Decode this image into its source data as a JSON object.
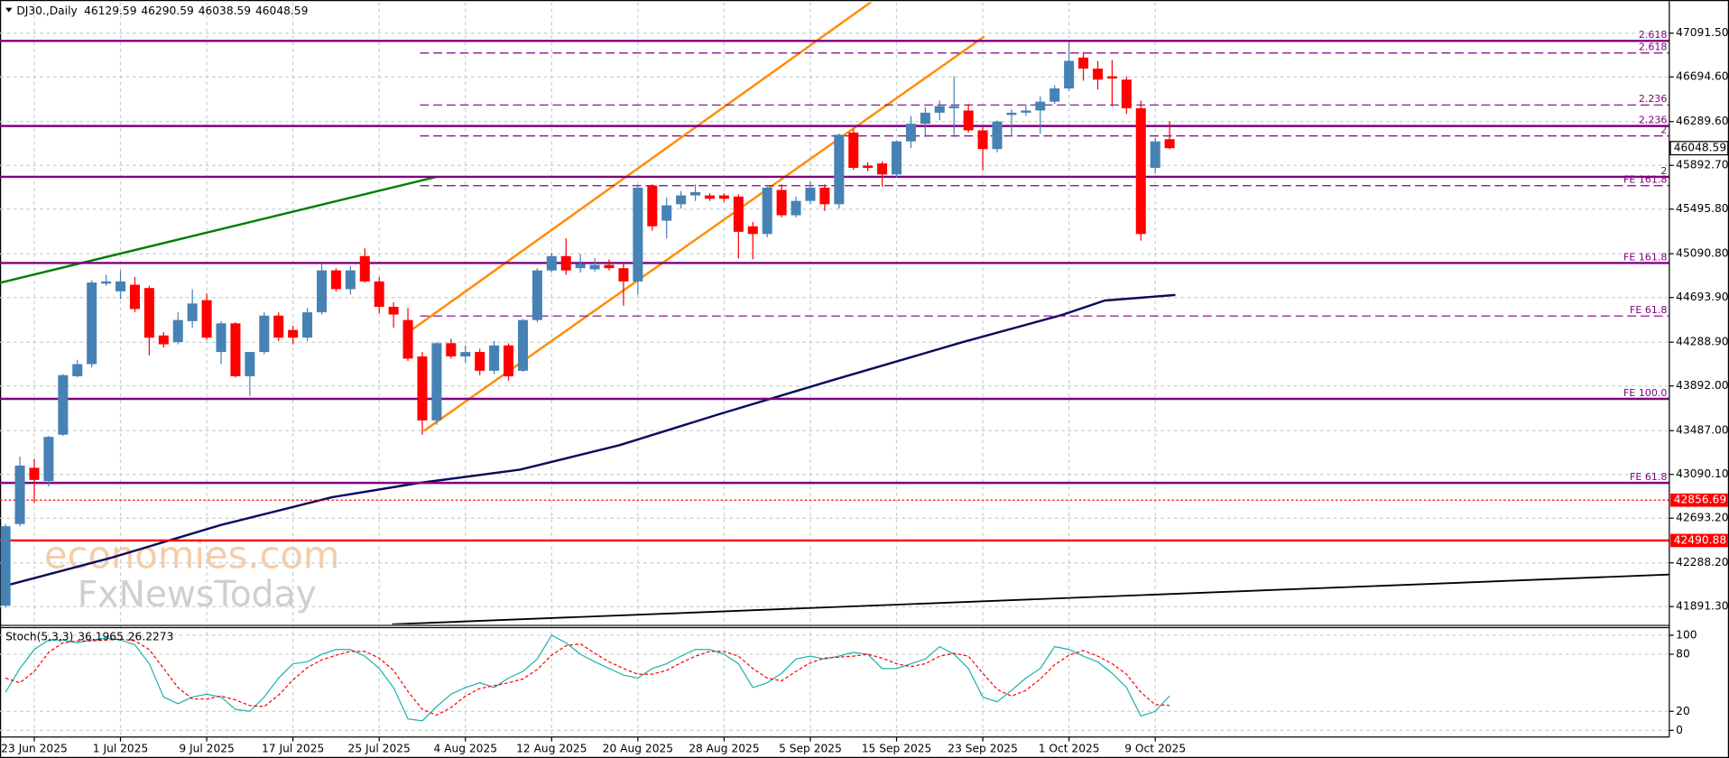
{
  "chart_data": {
    "type": "candlestick",
    "title": "DJ30.,Daily",
    "categories": [
      null,
      null,
      "23 Jun 2025",
      null,
      null,
      null,
      null,
      null,
      "1 Jul 2025",
      null,
      null,
      null,
      null,
      null,
      "9 Jul 2025",
      null,
      null,
      null,
      null,
      null,
      "17 Jul 2025",
      null,
      null,
      null,
      null,
      null,
      "25 Jul 2025",
      null,
      null,
      null,
      null,
      null,
      "4 Aug 2025",
      null,
      null,
      null,
      null,
      null,
      "12 Aug 2025",
      null,
      null,
      null,
      null,
      null,
      "20 Aug 2025",
      null,
      null,
      null,
      null,
      null,
      "28 Aug 2025",
      null,
      null,
      null,
      null,
      null,
      "5 Sep 2025",
      null,
      null,
      null,
      null,
      null,
      "15 Sep 2025",
      null,
      null,
      null,
      null,
      null,
      "23 Sep 2025",
      null,
      null,
      null,
      null,
      null,
      "1 Oct 2025",
      null,
      null,
      null,
      null,
      null,
      "9 Oct 2025",
      null
    ],
    "open": [
      41900,
      42640,
      43150,
      43030,
      43450,
      43980,
      44090,
      44820,
      44750,
      44810,
      44780,
      44350,
      44290,
      44480,
      44670,
      44200,
      44460,
      43980,
      44200,
      44530,
      44400,
      44330,
      44560,
      44940,
      44770,
      45070,
      44840,
      44610,
      44490,
      44160,
      43580,
      44280,
      44160,
      44200,
      44030,
      44260,
      44030,
      44490,
      44940,
      45070,
      44960,
      44950,
      44990,
      44960,
      44840,
      45710,
      45390,
      45540,
      45620,
      45620,
      45620,
      45610,
      45340,
      45270,
      45670,
      45440,
      45570,
      45690,
      45540,
      46190,
      45890,
      45910,
      45810,
      46110,
      46270,
      46370,
      46410,
      46390,
      46210,
      46040,
      46350,
      46370,
      46390,
      46470,
      46590,
      46870,
      46770,
      46700,
      46670,
      46410,
      45870,
      46129.59
    ],
    "high": [
      42640,
      43250,
      43230,
      43440,
      44000,
      44130,
      44850,
      44900,
      44940,
      44880,
      44800,
      44380,
      44560,
      44770,
      44730,
      44480,
      44470,
      44200,
      44560,
      44560,
      44440,
      44600,
      45000,
      44960,
      44980,
      45140,
      44880,
      44650,
      44600,
      44200,
      44290,
      44320,
      44260,
      44230,
      44300,
      44280,
      44500,
      44960,
      45100,
      45230,
      45090,
      45050,
      45040,
      45000,
      45720,
      45720,
      45600,
      45660,
      45720,
      45640,
      45640,
      45630,
      45380,
      45700,
      45720,
      45610,
      45750,
      45720,
      46180,
      46220,
      45920,
      45930,
      46120,
      46340,
      46420,
      46480,
      46700,
      46450,
      46240,
      46300,
      46400,
      46440,
      46520,
      46620,
      47010,
      46920,
      46840,
      46850,
      46700,
      46480,
      46140,
      46290.59
    ],
    "low": [
      41880,
      42620,
      42830,
      42980,
      43440,
      43970,
      44060,
      44800,
      44680,
      44560,
      44170,
      44240,
      44270,
      44420,
      44310,
      44090,
      43970,
      43800,
      44180,
      44300,
      44270,
      44300,
      44540,
      44750,
      44720,
      44830,
      44550,
      44420,
      44120,
      43450,
      43540,
      44140,
      44100,
      43990,
      44000,
      43940,
      44020,
      44470,
      44920,
      44900,
      44920,
      44930,
      44940,
      44620,
      44720,
      45300,
      45230,
      45500,
      45570,
      45570,
      45560,
      45050,
      45040,
      45240,
      45420,
      45420,
      45540,
      45480,
      45500,
      45850,
      45840,
      45700,
      45780,
      46050,
      46150,
      46300,
      46150,
      46190,
      45850,
      46010,
      46160,
      46340,
      46180,
      46450,
      46570,
      46660,
      46580,
      46430,
      46360,
      45210,
      45820,
      46038.59
    ],
    "close": [
      42620,
      43170,
      43040,
      43430,
      43990,
      44090,
      44830,
      44840,
      44840,
      44590,
      44330,
      44270,
      44490,
      44640,
      44330,
      44460,
      43980,
      44200,
      44530,
      44330,
      44330,
      44560,
      44940,
      44770,
      44940,
      44840,
      44610,
      44540,
      44140,
      43580,
      44280,
      44160,
      44200,
      44030,
      44260,
      43980,
      44490,
      44940,
      45070,
      44940,
      45000,
      44990,
      44960,
      44840,
      45690,
      45340,
      45530,
      45620,
      45650,
      45590,
      45590,
      45290,
      45270,
      45690,
      45440,
      45570,
      45690,
      45540,
      46170,
      45870,
      45870,
      45810,
      46110,
      46270,
      46370,
      46430,
      46430,
      46210,
      46040,
      46290,
      46370,
      46390,
      46470,
      46590,
      46840,
      46770,
      46670,
      46680,
      46410,
      45270,
      46110,
      46048.59
    ],
    "up_color": "#4682b4",
    "down_color": "#ff0000",
    "ylim": [
      41730.8,
      47372
    ],
    "yticks": [
      {
        "value": 47091.5,
        "label": "47091.50"
      },
      {
        "value": 46694.6,
        "label": "46694.60"
      },
      {
        "value": 46289.6,
        "label": "46289.60"
      },
      {
        "value": 45892.7,
        "label": "45892.70"
      },
      {
        "value": 45495.8,
        "label": "45495.80"
      },
      {
        "value": 45090.8,
        "label": "45090.80"
      },
      {
        "value": 44693.9,
        "label": "44693.90"
      },
      {
        "value": 44288.9,
        "label": "44288.90"
      },
      {
        "value": 43892,
        "label": "43892.00"
      },
      {
        "value": 43487,
        "label": "43487.00"
      },
      {
        "value": 43090.1,
        "label": "43090.10"
      },
      {
        "value": 42693.2,
        "label": "42693.20"
      },
      {
        "value": 42288.2,
        "label": "42288.20"
      },
      {
        "value": 41891.3,
        "label": "41891.30"
      }
    ],
    "grid": true,
    "levels": [
      {
        "value": 47021.4,
        "label": "2.618",
        "color": "#800080",
        "style": "solid"
      },
      {
        "value": 46911.1,
        "label": "2.618",
        "color": "#800080",
        "style": "dashed"
      },
      {
        "value": 46440.2,
        "label": "2.236",
        "color": "#800080",
        "style": "dashed"
      },
      {
        "value": 46249.8,
        "label": "2.236",
        "color": "#800080",
        "style": "solid"
      },
      {
        "value": 46159.6,
        "label": "2",
        "color": "#800080",
        "style": "dashed"
      },
      {
        "value": 45788.9,
        "label": "2",
        "color": "#800080",
        "style": "solid"
      },
      {
        "value": 45708.7,
        "label": "FE 161.8",
        "color": "#800080",
        "style": "dashed"
      },
      {
        "value": 45007.3,
        "label": "FE 161.8",
        "color": "#800080",
        "style": "solid"
      },
      {
        "value": 44526.4,
        "label": "FE 61.8",
        "color": "#800080",
        "style": "dashed"
      },
      {
        "value": 43774.9,
        "label": "FE 100.0",
        "color": "#800080",
        "style": "solid"
      },
      {
        "value": 43013.4,
        "label": "FE 61.8",
        "color": "#800080",
        "style": "solid"
      },
      {
        "value": 42856.69,
        "color": "#ff0000",
        "style": "dotted",
        "price_tag": true
      },
      {
        "value": 42490.88,
        "color": "#ff0000",
        "style": "solid",
        "price_tag": true
      }
    ],
    "trendlines": [
      {
        "color": "#ff8c00",
        "points": [
          [
            28.1,
            44386
          ],
          [
            60.4,
            47390
          ]
        ]
      },
      {
        "color": "#ff8c00",
        "points": [
          [
            29.1,
            43484
          ],
          [
            68.1,
            47061
          ]
        ]
      },
      {
        "color": "#008000",
        "points": [
          [
            -0.4,
            44827
          ],
          [
            30,
            45789
          ]
        ]
      },
      {
        "color": "#000000",
        "points": [
          [
            26.9,
            41731
          ],
          [
            115.8,
            42182
          ]
        ]
      }
    ],
    "moving_average": {
      "color": "#0b0b5e",
      "points": [
        [
          0,
          42081
        ],
        [
          7.3,
          42332
        ],
        [
          15,
          42632
        ],
        [
          22.7,
          42883
        ],
        [
          28.8,
          43013
        ],
        [
          35.8,
          43133
        ],
        [
          42.7,
          43354
        ],
        [
          49.6,
          43634
        ],
        [
          57.3,
          43935
        ],
        [
          66.5,
          44286
        ],
        [
          73.5,
          44536
        ],
        [
          76.5,
          44667
        ],
        [
          81.4,
          44717
        ]
      ]
    },
    "watermark": [
      "economies.com",
      "FxNewsToday"
    ],
    "indicator": {
      "type": "line",
      "title": "Stoch(5,3,3)",
      "ylim": [
        -7,
        108
      ],
      "yticks": [
        0,
        20,
        80,
        100
      ],
      "series": [
        {
          "color": "#20b2aa",
          "values": [
            40,
            65,
            85,
            95,
            95,
            92,
            95,
            97,
            95,
            90,
            70,
            35,
            28,
            35,
            38,
            35,
            22,
            20,
            35,
            55,
            70,
            72,
            80,
            85,
            85,
            78,
            65,
            45,
            12,
            10,
            25,
            38,
            45,
            50,
            45,
            55,
            62,
            75,
            100,
            92,
            80,
            72,
            65,
            58,
            55,
            65,
            70,
            78,
            85,
            85,
            80,
            70,
            45,
            50,
            60,
            75,
            78,
            75,
            78,
            82,
            80,
            65,
            65,
            70,
            75,
            88,
            80,
            65,
            35,
            30,
            42,
            55,
            65,
            88,
            85,
            78,
            72,
            60,
            45,
            15,
            20,
            36.1965
          ]
        },
        {
          "color": "#ff0000",
          "dashed": true,
          "values": [
            55,
            50,
            62,
            82,
            92,
            94,
            94,
            95,
            96,
            94,
            85,
            65,
            45,
            33,
            33,
            36,
            32,
            26,
            25,
            37,
            53,
            66,
            74,
            79,
            83,
            83,
            76,
            63,
            41,
            22,
            16,
            24,
            36,
            44,
            47,
            50,
            54,
            64,
            79,
            89,
            91,
            81,
            72,
            65,
            59,
            59,
            63,
            71,
            78,
            83,
            83,
            78,
            65,
            55,
            52,
            62,
            71,
            76,
            77,
            78,
            80,
            76,
            70,
            67,
            70,
            78,
            81,
            78,
            60,
            43,
            36,
            42,
            54,
            69,
            79,
            84,
            78,
            70,
            59,
            40,
            27,
            26.2273
          ]
        }
      ]
    }
  }
}
